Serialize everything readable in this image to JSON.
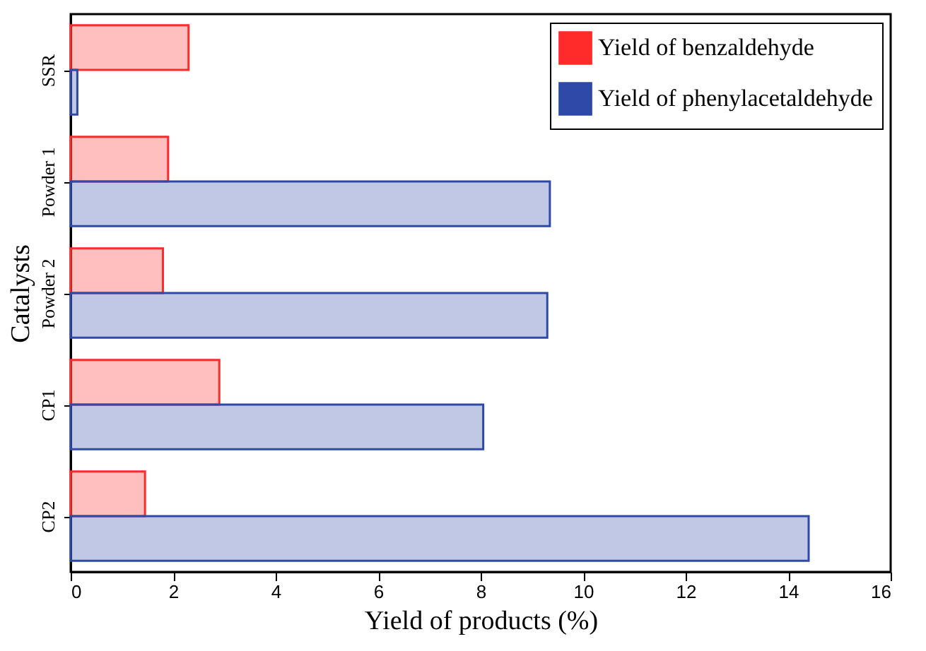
{
  "chart_data": {
    "type": "bar",
    "orientation": "horizontal",
    "xlabel": "Yield of products (%)",
    "ylabel": "Catalysts",
    "categories": [
      "SSR",
      "Powder 1",
      "Powder 2",
      "CP1",
      "CP2"
    ],
    "series": [
      {
        "name": "Yield of benzaldehyde",
        "color": "#ff2a2a",
        "values": [
          2.3,
          1.9,
          1.8,
          2.9,
          1.45
        ]
      },
      {
        "name": "Yield of phenylacetaldehyde",
        "color": "#2e49a8",
        "values": [
          0.13,
          9.35,
          9.3,
          8.05,
          14.4
        ]
      }
    ],
    "xlim": [
      0,
      16
    ],
    "xticks": [
      0,
      2,
      4,
      6,
      8,
      10,
      12,
      14,
      16
    ],
    "grid": false,
    "legend": "top right"
  }
}
